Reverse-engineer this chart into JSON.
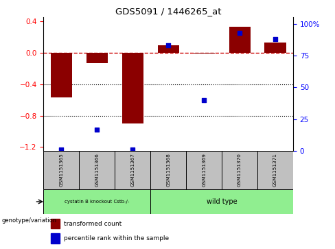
{
  "title": "GDS5091 / 1446265_at",
  "samples": [
    "GSM1151365",
    "GSM1151366",
    "GSM1151367",
    "GSM1151368",
    "GSM1151369",
    "GSM1151370",
    "GSM1151371"
  ],
  "bar_values": [
    -0.57,
    -0.13,
    -0.9,
    0.1,
    -0.01,
    0.33,
    0.13
  ],
  "scatter_values": [
    1,
    17,
    1,
    83,
    40,
    93,
    88
  ],
  "ylim_left": [
    -1.25,
    0.45
  ],
  "ylim_right": [
    0,
    105
  ],
  "yticks_left": [
    0.4,
    0.0,
    -0.4,
    -0.8,
    -1.2
  ],
  "yticks_right": [
    100,
    75,
    50,
    25,
    0
  ],
  "ytick_right_labels": [
    "100%",
    "75",
    "50",
    "25",
    "0"
  ],
  "bar_color": "#8B0000",
  "scatter_color": "#0000CC",
  "hline_color": "#CC0000",
  "dotted_line_color": "#000000",
  "group1_label": "cystatin B knockout Cstb-/-",
  "group2_label": "wild type",
  "group1_indices": [
    0,
    1,
    2
  ],
  "group2_indices": [
    3,
    4,
    5,
    6
  ],
  "genotype_label": "genotype/variation",
  "legend_bar_label": "transformed count",
  "legend_scatter_label": "percentile rank within the sample",
  "bar_width": 0.6,
  "group1_color": "#90EE90",
  "group2_color": "#90EE90",
  "table_bg_color": "#C0C0C0",
  "bg_color": "#FFFFFF"
}
